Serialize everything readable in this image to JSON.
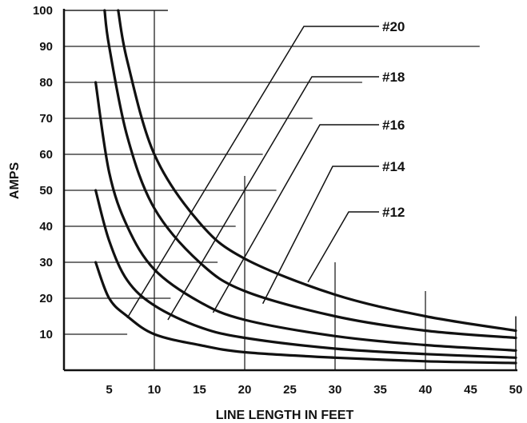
{
  "chart_data": {
    "type": "line",
    "xlabel": "LINE LENGTH IN FEET",
    "ylabel": "AMPS",
    "xlim": [
      0,
      50
    ],
    "ylim": [
      0,
      100
    ],
    "x_ticks": [
      5,
      10,
      15,
      20,
      25,
      30,
      35,
      40,
      45,
      50
    ],
    "y_ticks": [
      10,
      20,
      30,
      40,
      50,
      60,
      70,
      80,
      90,
      100
    ],
    "grid": "partial",
    "series": [
      {
        "name": "#20",
        "x": [
          3.5,
          5,
          7,
          10,
          15,
          20,
          30,
          40,
          50
        ],
        "y": [
          30,
          20,
          15,
          10,
          7,
          5,
          3.5,
          2.5,
          2
        ]
      },
      {
        "name": "#18",
        "x": [
          3.5,
          5,
          7,
          10,
          15,
          20,
          30,
          40,
          50
        ],
        "y": [
          50,
          36,
          25,
          18,
          12,
          9,
          6,
          4.5,
          3.5
        ]
      },
      {
        "name": "#16",
        "x": [
          3.5,
          5,
          7,
          10,
          15,
          20,
          30,
          40,
          50
        ],
        "y": [
          80,
          55,
          40,
          28,
          19,
          14,
          9.5,
          7,
          5.5
        ]
      },
      {
        "name": "#14",
        "x": [
          4.5,
          5,
          7,
          10,
          15,
          20,
          30,
          40,
          50
        ],
        "y": [
          100,
          90,
          65,
          45,
          30,
          22,
          15,
          11,
          9
        ]
      },
      {
        "name": "#12",
        "x": [
          6,
          7,
          10,
          15,
          20,
          30,
          40,
          50
        ],
        "y": [
          100,
          86,
          60,
          41,
          31,
          21,
          15,
          11
        ]
      }
    ]
  }
}
